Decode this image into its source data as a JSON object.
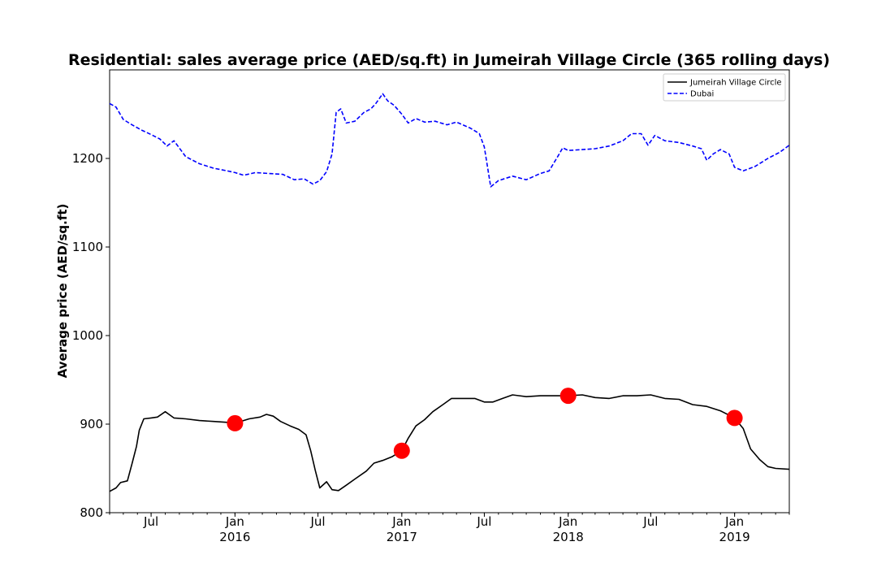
{
  "chart_data": {
    "type": "line",
    "title": "Residential: sales average price (AED/sq.ft) in Jumeirah Village Circle (365 rolling days)",
    "xlabel": "",
    "ylabel": "Average price (AED/sq.ft)",
    "xlim": [
      "2015-04-01",
      "2019-05-01"
    ],
    "ylim": [
      800,
      1300
    ],
    "y_ticks": [
      800,
      900,
      1000,
      1100,
      1200
    ],
    "x_ticks": [
      {
        "date": "2015-07-01",
        "label": "Jul",
        "sublabel": ""
      },
      {
        "date": "2016-01-01",
        "label": "Jan",
        "sublabel": "2016"
      },
      {
        "date": "2016-07-01",
        "label": "Jul",
        "sublabel": ""
      },
      {
        "date": "2017-01-01",
        "label": "Jan",
        "sublabel": "2017"
      },
      {
        "date": "2017-07-01",
        "label": "Jul",
        "sublabel": ""
      },
      {
        "date": "2018-01-01",
        "label": "Jan",
        "sublabel": "2018"
      },
      {
        "date": "2018-07-01",
        "label": "Jul",
        "sublabel": ""
      },
      {
        "date": "2019-01-01",
        "label": "Jan",
        "sublabel": "2019"
      }
    ],
    "grid": false,
    "legend_position": "top-right",
    "series": [
      {
        "name": "Jumeirah Village Circle",
        "color": "#000000",
        "style": "solid",
        "points": [
          [
            "2015-04-01",
            824
          ],
          [
            "2015-04-15",
            828
          ],
          [
            "2015-04-25",
            834
          ],
          [
            "2015-05-10",
            836
          ],
          [
            "2015-05-20",
            855
          ],
          [
            "2015-05-30",
            875
          ],
          [
            "2015-06-05",
            893
          ],
          [
            "2015-06-15",
            906
          ],
          [
            "2015-07-01",
            907
          ],
          [
            "2015-07-15",
            908
          ],
          [
            "2015-08-01",
            914
          ],
          [
            "2015-08-20",
            907
          ],
          [
            "2015-09-15",
            906
          ],
          [
            "2015-10-15",
            904
          ],
          [
            "2015-11-15",
            903
          ],
          [
            "2015-12-15",
            902
          ],
          [
            "2016-01-01",
            901
          ],
          [
            "2016-02-01",
            906
          ],
          [
            "2016-02-25",
            908
          ],
          [
            "2016-03-10",
            911
          ],
          [
            "2016-03-25",
            909
          ],
          [
            "2016-04-10",
            903
          ],
          [
            "2016-05-01",
            898
          ],
          [
            "2016-05-20",
            894
          ],
          [
            "2016-06-05",
            888
          ],
          [
            "2016-06-15",
            870
          ],
          [
            "2016-06-25",
            848
          ],
          [
            "2016-07-05",
            828
          ],
          [
            "2016-07-20",
            835
          ],
          [
            "2016-08-01",
            826
          ],
          [
            "2016-08-15",
            825
          ],
          [
            "2016-09-01",
            831
          ],
          [
            "2016-09-20",
            838
          ],
          [
            "2016-10-15",
            847
          ],
          [
            "2016-11-01",
            856
          ],
          [
            "2016-11-20",
            859
          ],
          [
            "2016-12-10",
            863
          ],
          [
            "2017-01-01",
            870
          ],
          [
            "2017-01-15",
            884
          ],
          [
            "2017-02-01",
            898
          ],
          [
            "2017-02-20",
            905
          ],
          [
            "2017-03-10",
            914
          ],
          [
            "2017-04-01",
            922
          ],
          [
            "2017-04-20",
            929
          ],
          [
            "2017-05-15",
            929
          ],
          [
            "2017-06-10",
            929
          ],
          [
            "2017-07-01",
            925
          ],
          [
            "2017-07-20",
            925
          ],
          [
            "2017-08-10",
            929
          ],
          [
            "2017-09-01",
            933
          ],
          [
            "2017-10-01",
            931
          ],
          [
            "2017-11-01",
            932
          ],
          [
            "2017-12-01",
            932
          ],
          [
            "2018-01-01",
            932
          ],
          [
            "2018-02-01",
            933
          ],
          [
            "2018-03-01",
            930
          ],
          [
            "2018-04-01",
            929
          ],
          [
            "2018-05-01",
            932
          ],
          [
            "2018-06-01",
            932
          ],
          [
            "2018-07-01",
            933
          ],
          [
            "2018-08-01",
            929
          ],
          [
            "2018-09-01",
            928
          ],
          [
            "2018-10-01",
            922
          ],
          [
            "2018-11-01",
            920
          ],
          [
            "2018-12-01",
            915
          ],
          [
            "2019-01-01",
            907
          ],
          [
            "2019-01-20",
            895
          ],
          [
            "2019-02-05",
            872
          ],
          [
            "2019-02-25",
            860
          ],
          [
            "2019-03-15",
            852
          ],
          [
            "2019-04-01",
            850
          ],
          [
            "2019-05-01",
            849
          ]
        ]
      },
      {
        "name": "Dubai",
        "color": "#0000ff",
        "style": "dashed",
        "points": [
          [
            "2015-04-01",
            1262
          ],
          [
            "2015-04-15",
            1258
          ],
          [
            "2015-05-01",
            1244
          ],
          [
            "2015-05-20",
            1238
          ],
          [
            "2015-06-10",
            1232
          ],
          [
            "2015-07-01",
            1227
          ],
          [
            "2015-07-20",
            1222
          ],
          [
            "2015-08-05",
            1214
          ],
          [
            "2015-08-20",
            1220
          ],
          [
            "2015-09-15",
            1202
          ],
          [
            "2015-10-15",
            1194
          ],
          [
            "2015-11-15",
            1189
          ],
          [
            "2015-12-15",
            1186
          ],
          [
            "2016-01-01",
            1184
          ],
          [
            "2016-01-20",
            1181
          ],
          [
            "2016-02-15",
            1184
          ],
          [
            "2016-03-15",
            1183
          ],
          [
            "2016-04-15",
            1182
          ],
          [
            "2016-05-10",
            1176
          ],
          [
            "2016-06-01",
            1177
          ],
          [
            "2016-06-20",
            1171
          ],
          [
            "2016-07-05",
            1175
          ],
          [
            "2016-07-20",
            1185
          ],
          [
            "2016-08-01",
            1205
          ],
          [
            "2016-08-10",
            1252
          ],
          [
            "2016-08-20",
            1256
          ],
          [
            "2016-09-01",
            1240
          ],
          [
            "2016-09-20",
            1242
          ],
          [
            "2016-10-10",
            1252
          ],
          [
            "2016-10-25",
            1256
          ],
          [
            "2016-11-05",
            1262
          ],
          [
            "2016-11-20",
            1273
          ],
          [
            "2016-12-01",
            1265
          ],
          [
            "2016-12-15",
            1260
          ],
          [
            "2017-01-01",
            1250
          ],
          [
            "2017-01-15",
            1240
          ],
          [
            "2017-02-01",
            1245
          ],
          [
            "2017-02-20",
            1241
          ],
          [
            "2017-03-15",
            1242
          ],
          [
            "2017-04-10",
            1238
          ],
          [
            "2017-05-01",
            1241
          ],
          [
            "2017-06-01",
            1234
          ],
          [
            "2017-06-20",
            1228
          ],
          [
            "2017-07-01",
            1213
          ],
          [
            "2017-07-15",
            1168
          ],
          [
            "2017-08-01",
            1175
          ],
          [
            "2017-09-01",
            1180
          ],
          [
            "2017-10-01",
            1176
          ],
          [
            "2017-11-01",
            1183
          ],
          [
            "2017-11-20",
            1186
          ],
          [
            "2017-12-10",
            1203
          ],
          [
            "2017-12-20",
            1212
          ],
          [
            "2018-01-01",
            1209
          ],
          [
            "2018-02-01",
            1210
          ],
          [
            "2018-03-01",
            1211
          ],
          [
            "2018-04-01",
            1214
          ],
          [
            "2018-05-01",
            1220
          ],
          [
            "2018-05-20",
            1228
          ],
          [
            "2018-06-10",
            1228
          ],
          [
            "2018-06-25",
            1215
          ],
          [
            "2018-07-10",
            1226
          ],
          [
            "2018-08-01",
            1220
          ],
          [
            "2018-09-01",
            1218
          ],
          [
            "2018-10-01",
            1214
          ],
          [
            "2018-10-20",
            1211
          ],
          [
            "2018-11-01",
            1198
          ],
          [
            "2018-11-15",
            1205
          ],
          [
            "2018-12-01",
            1210
          ],
          [
            "2018-12-20",
            1205
          ],
          [
            "2019-01-01",
            1190
          ],
          [
            "2019-01-20",
            1186
          ],
          [
            "2019-02-15",
            1191
          ],
          [
            "2019-03-15",
            1200
          ],
          [
            "2019-04-10",
            1207
          ],
          [
            "2019-05-01",
            1215
          ]
        ]
      }
    ],
    "markers": {
      "color": "#ff0000",
      "shape": "circle",
      "points": [
        [
          "2016-01-01",
          901
        ],
        [
          "2017-01-01",
          870
        ],
        [
          "2018-01-01",
          932
        ],
        [
          "2019-01-01",
          907
        ]
      ]
    }
  }
}
